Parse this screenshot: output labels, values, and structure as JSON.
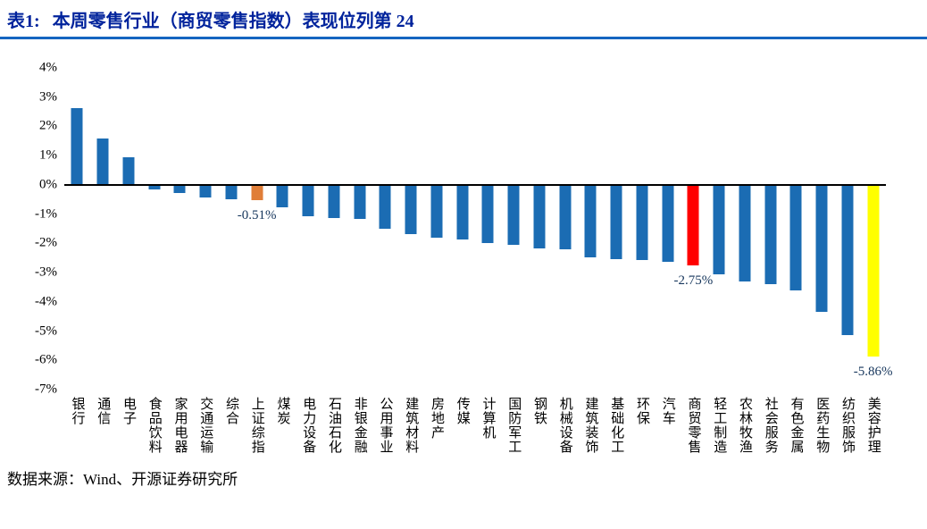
{
  "header": {
    "title_prefix": "表1:",
    "title_text": "本周零售行业（商贸零售指数）表现位列第 24"
  },
  "footer": {
    "source": "数据来源：Wind、开源证券研究所"
  },
  "colors": {
    "title": "#00239C",
    "rule": "#1565C0",
    "annotation": "#16365C",
    "axis_line": "#000000"
  },
  "chart_data": {
    "type": "bar",
    "title": "本周零售行业（商贸零售指数）表现位列第 24",
    "xlabel": "",
    "ylabel": "",
    "ylim": [
      -7,
      4
    ],
    "yticks": [
      4,
      3,
      2,
      1,
      0,
      -1,
      -2,
      -3,
      -4,
      -5,
      -6,
      -7
    ],
    "ytick_suffix": "%",
    "grid": false,
    "legend": "none",
    "default_color": "#1B6CB3",
    "categories": [
      "银行",
      "通信",
      "电子",
      "食品饮料",
      "家用电器",
      "交通运输",
      "综合",
      "上证综指",
      "煤炭",
      "电力设备",
      "石油石化",
      "非银金融",
      "公用事业",
      "建筑材料",
      "房地产",
      "传媒",
      "计算机",
      "国防军工",
      "钢铁",
      "机械设备",
      "建筑装饰",
      "基础化工",
      "环保",
      "汽车",
      "商贸零售",
      "轻工制造",
      "农林牧渔",
      "社会服务",
      "有色金属",
      "医药生物",
      "纺织服饰",
      "美容护理"
    ],
    "values": [
      2.61,
      1.6,
      0.95,
      -0.15,
      -0.27,
      -0.42,
      -0.48,
      -0.51,
      -0.76,
      -1.08,
      -1.12,
      -1.16,
      -1.5,
      -1.68,
      -1.8,
      -1.86,
      -2.0,
      -2.06,
      -2.16,
      -2.2,
      -2.48,
      -2.54,
      -2.58,
      -2.62,
      -2.75,
      -3.05,
      -3.3,
      -3.4,
      -3.62,
      -4.35,
      -5.15,
      -5.86
    ],
    "bar_colors": {
      "7": "#E07E38",
      "24": "#FF0000",
      "31": "#FFFF00"
    },
    "annotations": [
      {
        "index": 7,
        "label": "-0.51%"
      },
      {
        "index": 24,
        "label": "-2.75%"
      },
      {
        "index": 31,
        "label": "-5.86%"
      }
    ]
  }
}
